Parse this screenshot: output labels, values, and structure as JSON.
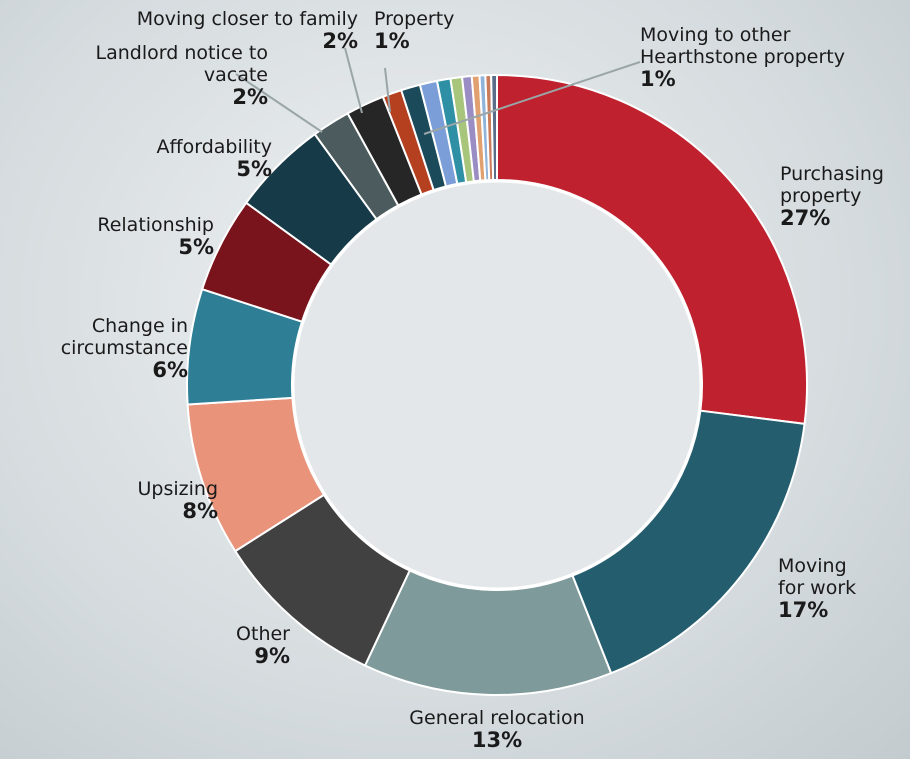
{
  "chart_data": {
    "type": "donut",
    "categories": [
      "Purchasing property",
      "Moving for work",
      "General relocation",
      "Other",
      "Upsizing",
      "Change in circumstance",
      "Relationship",
      "Affordability",
      "Landlord notice to vacate",
      "Moving closer to family",
      "Property",
      "Moving to other Hearthstone property",
      null,
      null,
      null,
      null,
      null,
      null,
      null,
      null
    ],
    "values": [
      27,
      17,
      13,
      9,
      8,
      6,
      5,
      5,
      2,
      2,
      1,
      1,
      0.9,
      0.7,
      0.6,
      0.5,
      0.4,
      0.3,
      0.3,
      0.3
    ],
    "value_labels": [
      "27%",
      "17%",
      "13%",
      "9%",
      "8%",
      "6%",
      "5%",
      "5%",
      "2%",
      "2%",
      "1%",
      "1%",
      null,
      null,
      null,
      null,
      null,
      null,
      null,
      null
    ],
    "colors": [
      "#c0212f",
      "#245e6e",
      "#7f9a9a",
      "#414141",
      "#e8937a",
      "#2e7f96",
      "#7a141c",
      "#163a47",
      "#4c5c5e",
      "#262626",
      "#b5401f",
      "#1b4a5a",
      "#7b9ed8",
      "#2e8fa5",
      "#a8c57c",
      "#9a8dc4",
      "#e0a070",
      "#8fb3d9",
      "#c97b5a",
      "#5a6e8a"
    ]
  }
}
